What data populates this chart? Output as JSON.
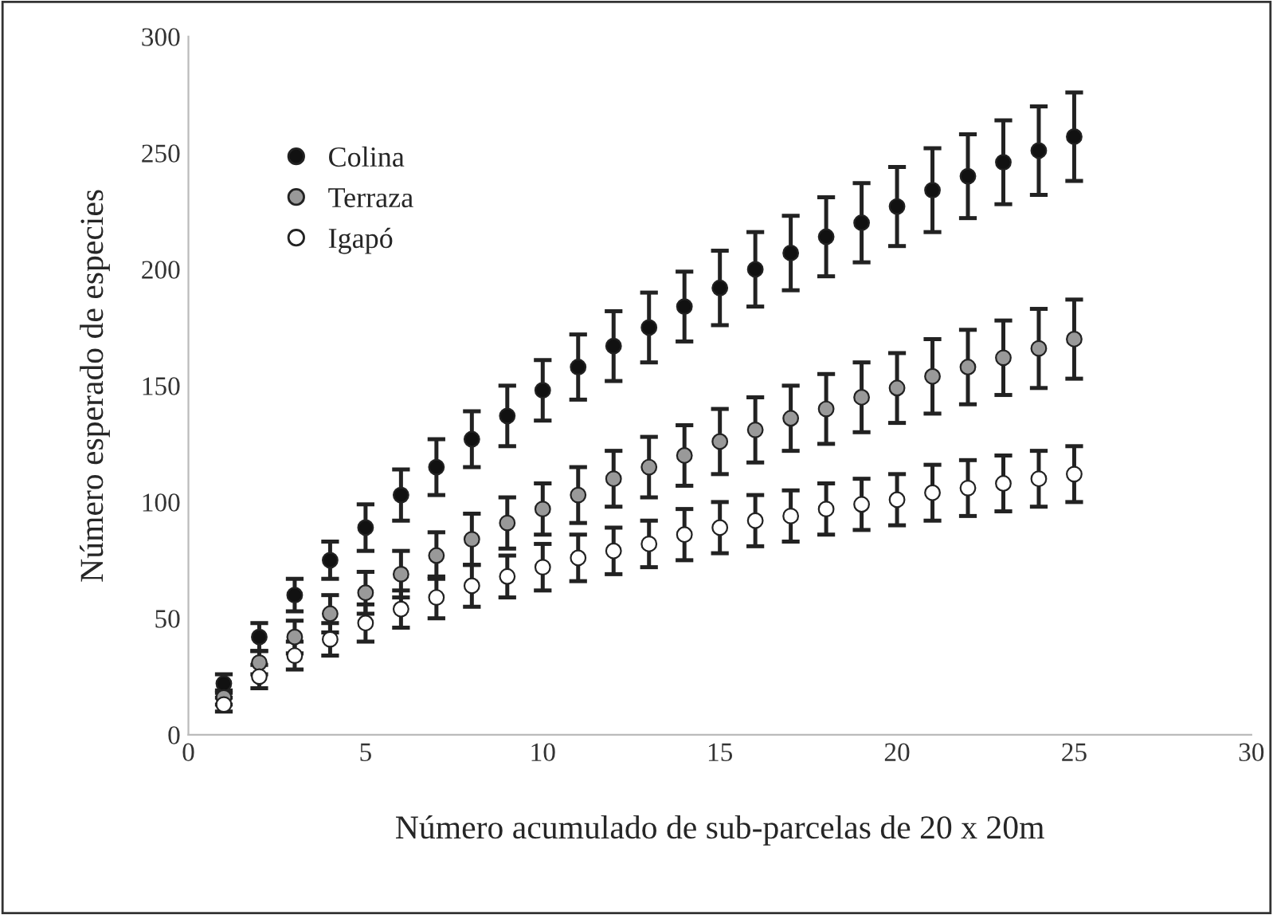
{
  "chart_data": {
    "type": "scatter",
    "xlabel": "Número acumulado de sub-parcelas de 20 x 20m",
    "ylabel": "Número esperado de especies",
    "x": [
      1,
      2,
      3,
      4,
      5,
      6,
      7,
      8,
      9,
      10,
      11,
      12,
      13,
      14,
      15,
      16,
      17,
      18,
      19,
      20,
      21,
      22,
      23,
      24,
      25
    ],
    "xlim": [
      0,
      30
    ],
    "xticks": [
      0,
      5,
      10,
      15,
      20,
      25,
      30
    ],
    "ylim": [
      0,
      300
    ],
    "yticks": [
      0,
      50,
      100,
      150,
      200,
      250,
      300
    ],
    "legend": "top left",
    "marker": "circle",
    "grid": false,
    "series": [
      {
        "name": "Colina",
        "color": "#111111",
        "values": [
          22,
          42,
          60,
          75,
          89,
          103,
          115,
          127,
          137,
          148,
          158,
          167,
          175,
          184,
          192,
          200,
          207,
          214,
          220,
          227,
          234,
          240,
          246,
          251,
          257
        ],
        "errors": [
          4,
          6,
          7,
          8,
          10,
          11,
          12,
          12,
          13,
          13,
          14,
          15,
          15,
          15,
          16,
          16,
          16,
          17,
          17,
          17,
          18,
          18,
          18,
          19,
          19
        ]
      },
      {
        "name": "Terraza",
        "color": "#999999",
        "values": [
          16,
          31,
          42,
          52,
          61,
          69,
          77,
          84,
          91,
          97,
          103,
          110,
          115,
          120,
          126,
          131,
          136,
          140,
          145,
          149,
          154,
          158,
          162,
          166,
          170
        ],
        "errors": [
          3,
          5,
          7,
          8,
          9,
          10,
          10,
          11,
          11,
          11,
          12,
          12,
          13,
          13,
          14,
          14,
          14,
          15,
          15,
          15,
          16,
          16,
          16,
          17,
          17
        ]
      },
      {
        "name": "Igapó",
        "color": "#ffffff",
        "values": [
          13,
          25,
          34,
          41,
          48,
          54,
          59,
          64,
          68,
          72,
          76,
          79,
          82,
          86,
          89,
          92,
          94,
          97,
          99,
          101,
          104,
          106,
          108,
          110,
          112
        ],
        "errors": [
          3,
          5,
          6,
          7,
          8,
          8,
          9,
          9,
          9,
          10,
          10,
          10,
          10,
          11,
          11,
          11,
          11,
          11,
          11,
          11,
          12,
          12,
          12,
          12,
          12
        ]
      }
    ]
  }
}
